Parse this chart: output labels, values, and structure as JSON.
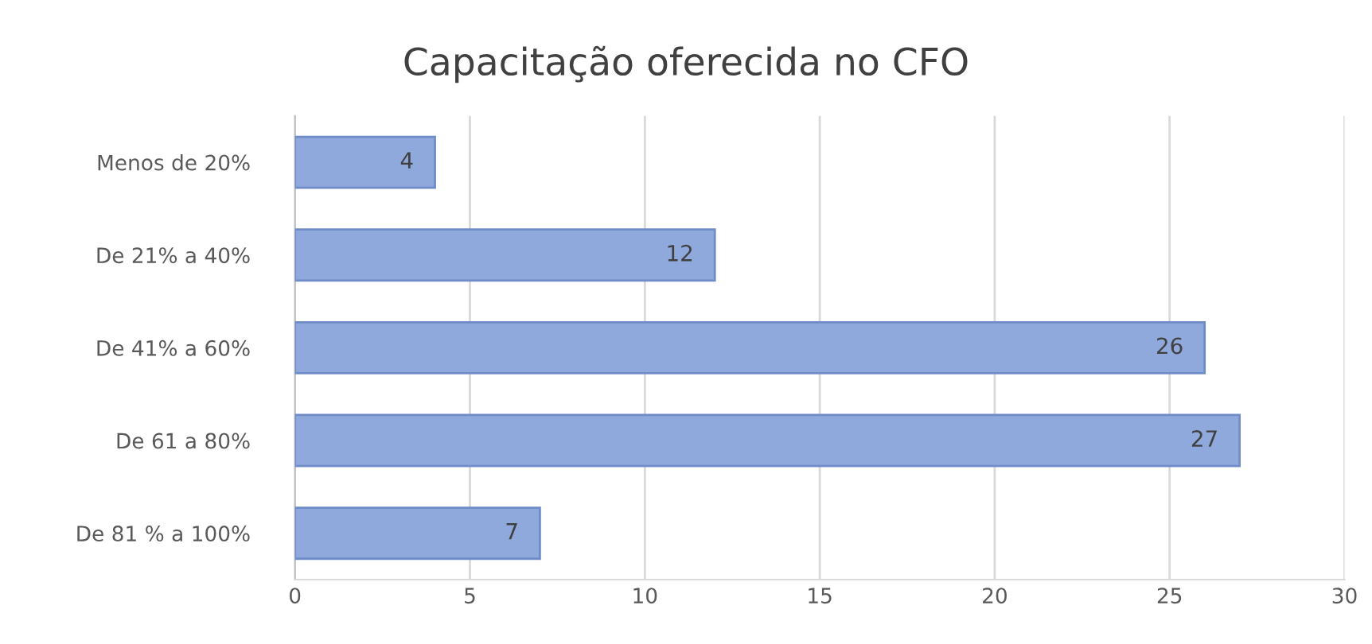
{
  "chart_data": {
    "type": "bar",
    "orientation": "horizontal",
    "title": "Capacitação oferecida no CFO",
    "categories": [
      "Menos de 20%",
      "De 21% a 40%",
      "De 41% a 60%",
      "De 61 a 80%",
      "De 81 % a 100%"
    ],
    "values": [
      4,
      12,
      26,
      27,
      7
    ],
    "color": "#8fa9dc",
    "xlim": [
      0,
      30
    ],
    "xticks": [
      0,
      5,
      10,
      15,
      20,
      25,
      30
    ],
    "grid": "x",
    "data_labels": true
  }
}
